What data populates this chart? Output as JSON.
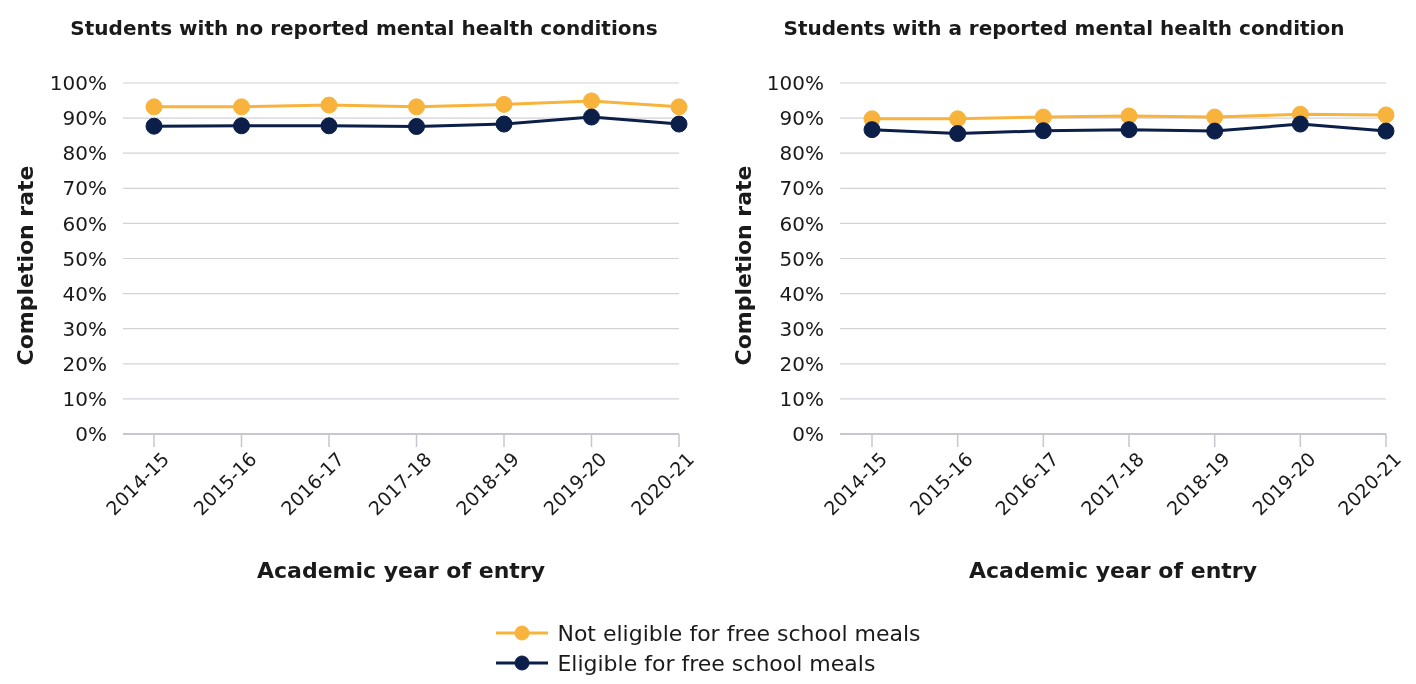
{
  "chart_data": [
    {
      "type": "line",
      "title": "Students with no reported mental health conditions",
      "xlabel": "Academic year of entry",
      "ylabel": "Completion rate",
      "categories": [
        "2014-15",
        "2015-16",
        "2016-17",
        "2017-18",
        "2018-19",
        "2019-20",
        "2020-21"
      ],
      "series": [
        {
          "name": "Not eligible for free school meals",
          "color": "#f8b33c",
          "values": [
            93.2,
            93.2,
            93.7,
            93.2,
            93.9,
            94.9,
            93.2
          ]
        },
        {
          "name": "Eligible for free school meals",
          "color": "#0b1f48",
          "values": [
            87.7,
            87.8,
            87.8,
            87.6,
            88.3,
            90.3,
            88.3
          ]
        }
      ],
      "ylim": [
        0,
        100
      ],
      "yticks": [
        {
          "value": 0,
          "label": "0%"
        },
        {
          "value": 10,
          "label": "10%"
        },
        {
          "value": 20,
          "label": "20%"
        },
        {
          "value": 30,
          "label": "30%"
        },
        {
          "value": 40,
          "label": "40%"
        },
        {
          "value": 50,
          "label": "50%"
        },
        {
          "value": 60,
          "label": "60%"
        },
        {
          "value": 70,
          "label": "70%"
        },
        {
          "value": 80,
          "label": "80%"
        },
        {
          "value": 90,
          "label": "90%"
        },
        {
          "value": 100,
          "label": "100%"
        }
      ],
      "grid": "y",
      "legend": "bottom",
      "marker": "circle",
      "line_style": "solid"
    },
    {
      "type": "line",
      "title": "Students with a reported mental health condition",
      "xlabel": "Academic year of entry",
      "ylabel": "Completion rate",
      "categories": [
        "2014-15",
        "2015-16",
        "2016-17",
        "2017-18",
        "2018-19",
        "2019-20",
        "2020-21"
      ],
      "series": [
        {
          "name": "Not eligible for free school meals",
          "color": "#f8b33c",
          "values": [
            89.8,
            89.8,
            90.3,
            90.6,
            90.3,
            91.1,
            90.9
          ]
        },
        {
          "name": "Eligible for free school meals",
          "color": "#0b1f48",
          "values": [
            86.7,
            85.6,
            86.4,
            86.7,
            86.3,
            88.3,
            86.3
          ]
        }
      ],
      "ylim": [
        0,
        100
      ],
      "yticks": [
        {
          "value": 0,
          "label": "0%"
        },
        {
          "value": 10,
          "label": "10%"
        },
        {
          "value": 20,
          "label": "20%"
        },
        {
          "value": 30,
          "label": "30%"
        },
        {
          "value": 40,
          "label": "40%"
        },
        {
          "value": 50,
          "label": "50%"
        },
        {
          "value": 60,
          "label": "60%"
        },
        {
          "value": 70,
          "label": "70%"
        },
        {
          "value": 80,
          "label": "80%"
        },
        {
          "value": 90,
          "label": "90%"
        },
        {
          "value": 100,
          "label": "100%"
        }
      ],
      "grid": "y",
      "legend": "bottom",
      "marker": "circle",
      "line_style": "solid"
    }
  ]
}
